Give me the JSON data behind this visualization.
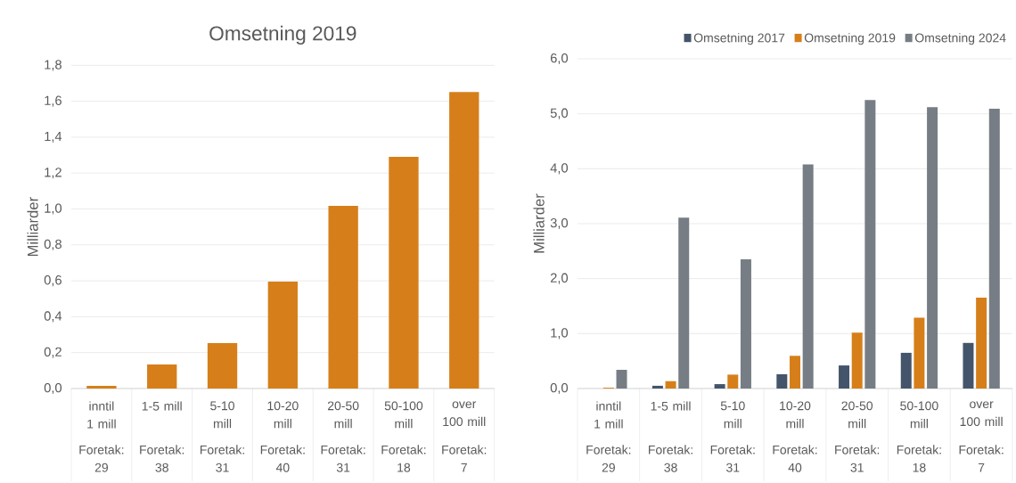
{
  "chart_data": [
    {
      "type": "bar",
      "title": "Omsetning 2019",
      "ylabel": "Milliarder",
      "categories": [
        "inntil 1 mill",
        "1-5 mill",
        "5-10 mill",
        "10-20 mill",
        "20-50 mill",
        "50-100 mill",
        "over 100 mill"
      ],
      "annotations": [
        "Foretak: 29",
        "Foretak: 38",
        "Foretak: 31",
        "Foretak: 40",
        "Foretak: 31",
        "Foretak: 18",
        "Foretak: 7"
      ],
      "series": [
        {
          "color": "#d67f1a",
          "values": [
            0.015,
            0.134,
            0.253,
            0.595,
            1.017,
            1.29,
            1.652
          ]
        }
      ],
      "ylim": [
        0,
        1.8
      ],
      "yticks": [
        {
          "value": 0,
          "label": "0,0"
        },
        {
          "value": 0.2,
          "label": "0,2"
        },
        {
          "value": 0.4,
          "label": "0,4"
        },
        {
          "value": 0.6,
          "label": "0,6"
        },
        {
          "value": 0.8,
          "label": "0,8"
        },
        {
          "value": 1.0,
          "label": "1,0"
        },
        {
          "value": 1.2,
          "label": "1,2"
        },
        {
          "value": 1.4,
          "label": "1,4"
        },
        {
          "value": 1.6,
          "label": "1,6"
        },
        {
          "value": 1.8,
          "label": "1,8"
        }
      ],
      "grid": "y"
    },
    {
      "type": "bar",
      "ylabel": "Milliarder",
      "categories": [
        "inntil 1 mill",
        "1-5 mill",
        "5-10 mill",
        "10-20 mill",
        "20-50 mill",
        "50-100 mill",
        "over 100 mill"
      ],
      "annotations": [
        "Foretak: 29",
        "Foretak: 38",
        "Foretak: 31",
        "Foretak: 40",
        "Foretak: 31",
        "Foretak: 18",
        "Foretak: 7"
      ],
      "series": [
        {
          "name": "Omsetning 2017",
          "color": "#44546a",
          "values": [
            0,
            0.05,
            0.08,
            0.26,
            0.42,
            0.65,
            0.83
          ]
        },
        {
          "name": "Omsetning 2019",
          "color": "#d67f1a",
          "values": [
            0.015,
            0.134,
            0.253,
            0.595,
            1.017,
            1.29,
            1.652
          ]
        },
        {
          "name": "Omsetning 2024",
          "color": "#767d85",
          "values": [
            0.34,
            3.11,
            2.35,
            4.08,
            5.25,
            5.12,
            5.09
          ]
        }
      ],
      "ylim": [
        0,
        6
      ],
      "yticks": [
        {
          "value": 0,
          "label": "0,0"
        },
        {
          "value": 1,
          "label": "1,0"
        },
        {
          "value": 2,
          "label": "2,0"
        },
        {
          "value": 3,
          "label": "3,0"
        },
        {
          "value": 4,
          "label": "4,0"
        },
        {
          "value": 5,
          "label": "5,0"
        },
        {
          "value": 6,
          "label": "6,0"
        }
      ],
      "grid": "y",
      "legend": "top"
    }
  ]
}
